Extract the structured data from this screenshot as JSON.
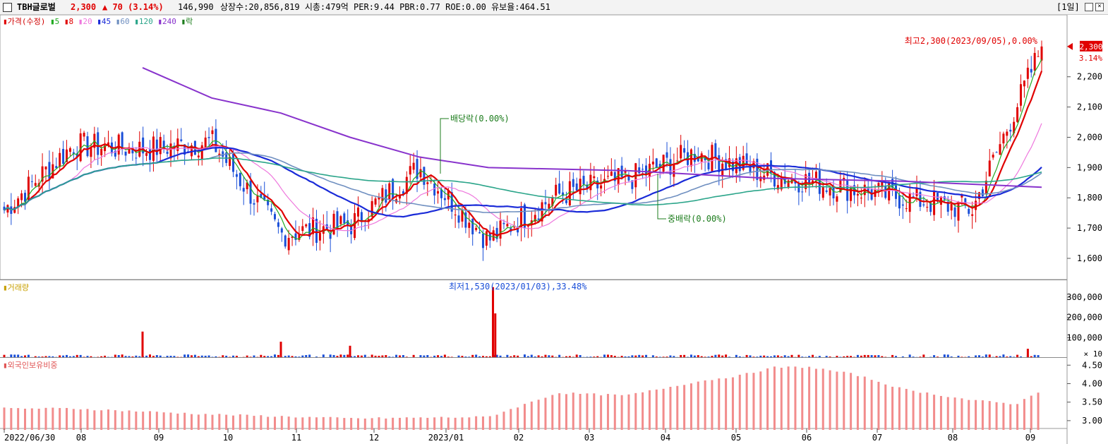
{
  "header": {
    "stock_name": "TBH글로벌",
    "price": "2,300",
    "change": "▲ 70 (3.14%)",
    "volume": "146,990",
    "info": "상장수:20,856,819 시총:479억 PER:9.44 PBR:0.77 ROE:0.00 유보율:464.51",
    "period": "[1일]"
  },
  "legend": {
    "price_label": "가격(수정)",
    "ma": [
      {
        "label": "5",
        "color": "#22aa22"
      },
      {
        "label": "8",
        "color": "#e00000"
      },
      {
        "label": "20",
        "color": "#ee77dd"
      },
      {
        "label": "45",
        "color": "#1a2bd8"
      },
      {
        "label": "60",
        "color": "#6f8fc0"
      },
      {
        "label": "120",
        "color": "#2ba58a"
      },
      {
        "label": "240",
        "color": "#8833cc"
      }
    ],
    "rak_label": "락"
  },
  "chart_data": [
    {
      "type": "candlestick",
      "title": "가격(수정)",
      "date_range": [
        "2022-06-30",
        "2023-09-05"
      ],
      "ylim": [
        1530,
        2330
      ],
      "y_ticks": [
        "2,200",
        "2,100",
        "2,000",
        "1,900",
        "1,800",
        "1,700",
        "1,600"
      ],
      "y_tick_values": [
        2200,
        2100,
        2000,
        1900,
        1800,
        1700,
        1600
      ],
      "x_ticks": [
        "2022/06/30",
        "08",
        "09",
        "10",
        "11",
        "12",
        "2023/01",
        "02",
        "03",
        "04",
        "05",
        "06",
        "07",
        "08",
        "09"
      ],
      "monthly_closes": [
        1760,
        1975,
        1960,
        1985,
        1680,
        1710,
        1900,
        1660,
        1810,
        1860,
        1950,
        1880,
        1840,
        1800,
        1760,
        2300
      ],
      "ma240": [
        {
          "x": "2022-08",
          "y": 2230
        },
        {
          "x": "2022-09",
          "y": 2130
        },
        {
          "x": "2022-10",
          "y": 2080
        },
        {
          "x": "2022-11",
          "y": 2000
        },
        {
          "x": "2022-12",
          "y": 1935
        },
        {
          "x": "2023-01",
          "y": 1900
        },
        {
          "x": "2023-03",
          "y": 1890
        },
        {
          "x": "2023-05",
          "y": 1865
        },
        {
          "x": "2023-07",
          "y": 1855
        },
        {
          "x": "2023-09",
          "y": 1835
        }
      ],
      "annotations": {
        "high": "최고2,300(2023/09/05),0.00%",
        "low": "최저1,530(2023/01/03),33.48%",
        "dividend": "배당락(0.00%)",
        "dividend2": "중배락(0.00%)"
      },
      "last_price_tag": "2,300",
      "last_change_tag": "3.14%"
    },
    {
      "type": "bar",
      "title": "거래량",
      "y_ticks": [
        "300,000",
        "200,000",
        "100,000"
      ],
      "y_tick_values": [
        300000,
        200000,
        100000
      ],
      "y_unit": "× 10",
      "ylim": [
        0,
        370000
      ],
      "spikes": [
        {
          "x": "2022-08-01",
          "y": 130000
        },
        {
          "x": "2022-10-01",
          "y": 80000
        },
        {
          "x": "2022-11-01",
          "y": 60000
        },
        {
          "x": "2023-01-03",
          "y": 350000
        },
        {
          "x": "2023-01-04",
          "y": 220000
        },
        {
          "x": "2023-08-25",
          "y": 45000
        }
      ]
    },
    {
      "type": "bar",
      "title": "외국인보유비중",
      "y_ticks": [
        "4.50",
        "4.00",
        "3.50",
        "3.00"
      ],
      "y_tick_values": [
        4.5,
        4.0,
        3.5,
        3.0
      ],
      "ylim": [
        2.75,
        4.62
      ],
      "series_points": [
        {
          "x": "2022-06-30",
          "y": 3.33
        },
        {
          "x": "2022-09",
          "y": 3.17
        },
        {
          "x": "2022-11",
          "y": 3.06
        },
        {
          "x": "2023-01",
          "y": 3.1
        },
        {
          "x": "2023-02",
          "y": 3.75
        },
        {
          "x": "2023-03",
          "y": 3.68
        },
        {
          "x": "2023-04",
          "y": 4.05
        },
        {
          "x": "2023-04-20",
          "y": 4.22
        },
        {
          "x": "2023-05-05",
          "y": 4.44
        },
        {
          "x": "2023-05-20",
          "y": 4.45
        },
        {
          "x": "2023-06-10",
          "y": 4.25
        },
        {
          "x": "2023-07",
          "y": 3.85
        },
        {
          "x": "2023-08",
          "y": 3.55
        },
        {
          "x": "2023-08-20",
          "y": 3.45
        },
        {
          "x": "2023-09-05",
          "y": 3.97
        }
      ]
    }
  ],
  "volume_label": "거래량",
  "foreign_label": "외국인보유비중"
}
